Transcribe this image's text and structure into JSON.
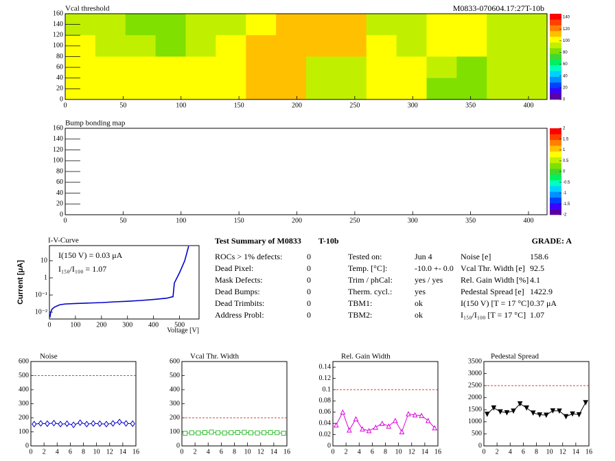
{
  "header": {
    "id": "M0833-070604.17:27T-10b"
  },
  "summary": {
    "title": "Test Summary of M0833",
    "label": "T-10b",
    "grade": "GRADE:  A",
    "defects": [
      [
        "ROCs > 1% defects:",
        "0"
      ],
      [
        "Dead Pixel:",
        "0"
      ],
      [
        "Mask Defects:",
        "0"
      ],
      [
        "Dead Bumps:",
        "0"
      ],
      [
        "Dead Trimbits:",
        "0"
      ],
      [
        "Address Probl:",
        "0"
      ]
    ],
    "tests": [
      [
        "Tested on:",
        "Jun 4"
      ],
      [
        "Temp. [°C]:",
        "-10.0 +- 0.0"
      ],
      [
        "Trim / phCal:",
        "yes / yes"
      ],
      [
        "Therm. cycl.:",
        "yes"
      ],
      [
        "TBM1:",
        "ok"
      ],
      [
        "TBM2:",
        "ok"
      ]
    ],
    "results": [
      [
        "Noise [e]",
        "158.6"
      ],
      [
        "Vcal Thr. Width [e]",
        "92.5"
      ],
      [
        "Rel. Gain Width [%]",
        "4.1"
      ],
      [
        "Pedestal Spread [e]",
        "1422.9"
      ],
      [
        "I(150 V) [T = 17 °C]",
        "0.37 μA"
      ],
      [
        "I₁₅₀/I₁₀₀  [T = 17 °C]",
        "1.07"
      ]
    ]
  },
  "chart_data": [
    {
      "type": "heatmap",
      "title": "Vcal threshold",
      "xlim": [
        0,
        416
      ],
      "xticks": [
        0,
        50,
        100,
        150,
        200,
        250,
        300,
        350,
        400
      ],
      "ylim": [
        0,
        160
      ],
      "yticks": [
        0,
        20,
        40,
        60,
        80,
        100,
        120,
        140,
        160
      ],
      "zlim": [
        0,
        146
      ],
      "zticks": [
        0,
        20,
        40,
        60,
        80,
        100,
        120,
        140
      ],
      "colorscale": [
        "#5a00a0",
        "#3c00ff",
        "#0040ff",
        "#0090ff",
        "#00d0ff",
        "#00ffc0",
        "#00f060",
        "#40d830",
        "#80e000",
        "#c0f000",
        "#ffff00",
        "#ffc000",
        "#ff8000",
        "#ff4000",
        "#ff0000"
      ],
      "z": [
        [
          95,
          92,
          85,
          84,
          92,
          95,
          104,
          108,
          108,
          112,
          96,
          92,
          100,
          102,
          94,
          92
        ],
        [
          98,
          96,
          88,
          86,
          96,
          98,
          108,
          112,
          110,
          116,
          98,
          94,
          104,
          104,
          96,
          94
        ],
        [
          104,
          102,
          100,
          98,
          100,
          100,
          114,
          110,
          96,
          94,
          102,
          100,
          88,
          86,
          92,
          94
        ],
        [
          106,
          104,
          102,
          100,
          102,
          100,
          112,
          108,
          94,
          92,
          100,
          98,
          86,
          84,
          90,
          92
        ]
      ]
    },
    {
      "type": "heatmap",
      "title": "Bump bonding map",
      "xlim": [
        0,
        416
      ],
      "xticks": [
        0,
        50,
        100,
        150,
        200,
        250,
        300,
        350,
        400
      ],
      "ylim": [
        0,
        160
      ],
      "yticks": [
        0,
        20,
        40,
        60,
        80,
        100,
        120,
        140,
        160
      ],
      "zlim": [
        -2,
        2
      ],
      "zticks": [
        -2,
        -1.5,
        -1,
        -0.5,
        0,
        0.5,
        1,
        1.5,
        2
      ],
      "colorscale": [
        "#5a00a0",
        "#3c00ff",
        "#0040ff",
        "#0090ff",
        "#00d0ff",
        "#00ffc0",
        "#00f060",
        "#40d830",
        "#80e000",
        "#c0f000",
        "#ffff00",
        "#ffc000",
        "#ff8000",
        "#ff4000",
        "#ff0000"
      ]
    },
    {
      "type": "line",
      "title": "I-V-Curve",
      "xlabel": "Voltage [V]",
      "ylabel": "Current [μA]",
      "ylog": true,
      "color": "#0000cc",
      "xlim": [
        0,
        575
      ],
      "xticks": [
        0,
        100,
        200,
        300,
        400,
        500
      ],
      "ylim": [
        0.004,
        76
      ],
      "yticks": [
        {
          "value": 0.01,
          "label": "10⁻²"
        },
        {
          "value": 0.1,
          "label": "10⁻¹"
        },
        1,
        10
      ],
      "annotations": [
        "I(150 V) = 0.03 μA",
        "I₁₅₀/I₁₀₀ =  1.07"
      ],
      "x": [
        2,
        5,
        10,
        20,
        40,
        60,
        100,
        150,
        200,
        250,
        300,
        350,
        400,
        450,
        475,
        480,
        500,
        520,
        535
      ],
      "values": [
        0.005,
        0.01,
        0.015,
        0.02,
        0.027,
        0.03,
        0.032,
        0.034,
        0.036,
        0.04,
        0.043,
        0.048,
        0.055,
        0.065,
        0.08,
        0.5,
        2,
        10,
        70
      ]
    },
    {
      "type": "line",
      "title": "Noise",
      "color": "#0000cc",
      "marker": "diamond",
      "ref_line": 500,
      "xlim": [
        0,
        16
      ],
      "xticks": [
        0,
        2,
        4,
        6,
        8,
        10,
        12,
        14,
        16
      ],
      "ylim": [
        0,
        600
      ],
      "yticks": [
        0,
        100,
        200,
        300,
        400,
        500,
        600
      ],
      "x": [
        0.5,
        1.5,
        2.5,
        3.5,
        4.5,
        5.5,
        6.5,
        7.5,
        8.5,
        9.5,
        10.5,
        11.5,
        12.5,
        13.5,
        14.5,
        15.5
      ],
      "values": [
        155,
        160,
        158,
        162,
        155,
        158,
        150,
        165,
        155,
        160,
        158,
        155,
        160,
        170,
        160,
        158
      ]
    },
    {
      "type": "line",
      "title": "Vcal Thr. Width",
      "color": "#33bb33",
      "marker": "square",
      "ref_line": 200,
      "xlim": [
        0,
        16
      ],
      "xticks": [
        0,
        2,
        4,
        6,
        8,
        10,
        12,
        14,
        16
      ],
      "ylim": [
        0,
        600
      ],
      "yticks": [
        0,
        100,
        200,
        300,
        400,
        500,
        600
      ],
      "x": [
        0.5,
        1.5,
        2.5,
        3.5,
        4.5,
        5.5,
        6.5,
        7.5,
        8.5,
        9.5,
        10.5,
        11.5,
        12.5,
        13.5,
        14.5,
        15.5
      ],
      "values": [
        90,
        93,
        92,
        95,
        98,
        93,
        92,
        94,
        95,
        97,
        93,
        92,
        94,
        96,
        94,
        90
      ]
    },
    {
      "type": "line",
      "title": "Rel. Gain Width",
      "color": "#dd00dd",
      "marker": "triangle",
      "ref_line": 0.1,
      "xlim": [
        0,
        16
      ],
      "xticks": [
        0,
        2,
        4,
        6,
        8,
        10,
        12,
        14,
        16
      ],
      "ylim": [
        0,
        0.15
      ],
      "yticks": [
        0,
        0.02,
        0.04,
        0.06,
        0.08,
        0.1,
        0.12,
        0.14
      ],
      "x": [
        0.5,
        1.5,
        2.5,
        3.5,
        4.5,
        5.5,
        6.5,
        7.5,
        8.5,
        9.5,
        10.5,
        11.5,
        12.5,
        13.5,
        14.5,
        15.5
      ],
      "values": [
        0.037,
        0.06,
        0.028,
        0.048,
        0.03,
        0.027,
        0.033,
        0.04,
        0.035,
        0.045,
        0.025,
        0.057,
        0.055,
        0.054,
        0.045,
        0.032
      ]
    },
    {
      "type": "line",
      "title": "Pedestal Spread",
      "color": "#000000",
      "marker": "triangle-down",
      "ref_line": 2500,
      "xlim": [
        0,
        16
      ],
      "xticks": [
        0,
        2,
        4,
        6,
        8,
        10,
        12,
        14,
        16
      ],
      "ylim": [
        0,
        3500
      ],
      "yticks": [
        0,
        500,
        1000,
        1500,
        2000,
        2500,
        3000,
        3500
      ],
      "x": [
        0.5,
        1.5,
        2.5,
        3.5,
        4.5,
        5.5,
        6.5,
        7.5,
        8.5,
        9.5,
        10.5,
        11.5,
        12.5,
        13.5,
        14.5,
        15.5
      ],
      "values": [
        1320,
        1580,
        1420,
        1380,
        1450,
        1750,
        1580,
        1370,
        1290,
        1280,
        1460,
        1450,
        1220,
        1330,
        1300,
        1800
      ]
    }
  ]
}
